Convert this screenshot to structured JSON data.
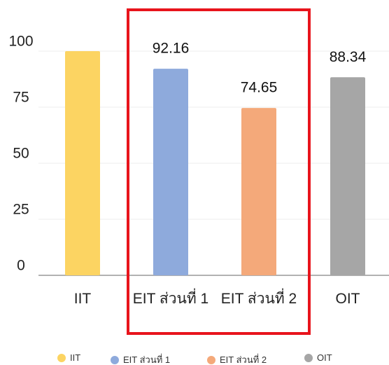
{
  "chart_data": {
    "type": "bar",
    "categories": [
      "IIT",
      "EIT ส่วนที่ 1",
      "EIT ส่วนที่ 2",
      "OIT"
    ],
    "values": [
      100,
      92.16,
      74.65,
      88.34
    ],
    "value_labels": [
      null,
      "92.16",
      "74.65",
      "88.34"
    ],
    "colors": [
      "#fcd462",
      "#8eaadc",
      "#f4a97a",
      "#a6a6a6"
    ],
    "ylim": [
      0,
      100
    ],
    "yticks": [
      0,
      25,
      50,
      75,
      100
    ],
    "grid": true,
    "legend": "bottom"
  }
}
